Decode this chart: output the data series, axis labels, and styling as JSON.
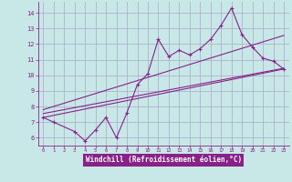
{
  "background_color": "#c8e8e8",
  "grid_color": "#b0b0cc",
  "line_color": "#882288",
  "xlabel": "Windchill (Refroidissement éolien,°C)",
  "xlim": [
    -0.5,
    23.5
  ],
  "ylim": [
    5.5,
    14.7
  ],
  "yticks": [
    6,
    7,
    8,
    9,
    10,
    11,
    12,
    13,
    14
  ],
  "xticks": [
    0,
    1,
    2,
    3,
    4,
    5,
    6,
    7,
    8,
    9,
    10,
    11,
    12,
    13,
    14,
    15,
    16,
    17,
    18,
    19,
    20,
    21,
    22,
    23
  ],
  "main_x": [
    0,
    1,
    3,
    4,
    5,
    6,
    7,
    8,
    9,
    10,
    11,
    12,
    13,
    14,
    15,
    16,
    17,
    18,
    19,
    20,
    21,
    22,
    23
  ],
  "main_y": [
    7.3,
    7.0,
    6.4,
    5.8,
    6.5,
    7.3,
    6.0,
    7.6,
    9.4,
    10.1,
    12.3,
    11.2,
    11.6,
    11.3,
    11.7,
    12.3,
    13.2,
    14.3,
    12.6,
    11.8,
    11.1,
    10.9,
    10.4
  ],
  "trend1_x": [
    0,
    23
  ],
  "trend1_y": [
    7.55,
    10.45
  ],
  "trend2_x": [
    0,
    23
  ],
  "trend2_y": [
    7.8,
    12.55
  ],
  "trend3_x": [
    0,
    23
  ],
  "trend3_y": [
    7.3,
    10.4
  ]
}
